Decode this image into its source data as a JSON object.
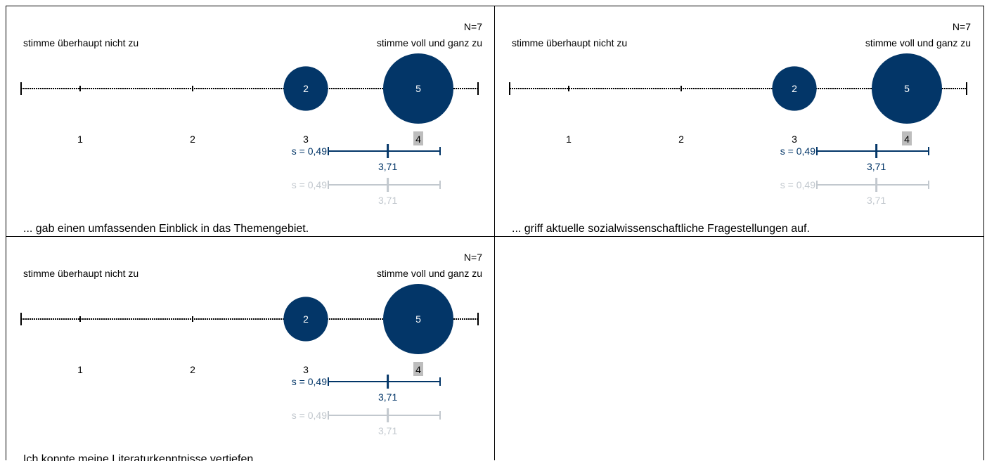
{
  "colors": {
    "accent": "#033668",
    "reference": "#c2c8ce",
    "axis": "#000000",
    "highlight": "#bdbdbd"
  },
  "chart_data": [
    {
      "type": "scatter",
      "question": "...  gab einen umfassenden Einblick in das Themengebiet.",
      "n_label": "N=7",
      "left_anchor": "stimme überhaupt nicht zu",
      "right_anchor": "stimme voll und ganz zu",
      "categories": [
        "1",
        "2",
        "3",
        "4"
      ],
      "counts": [
        0,
        0,
        2,
        5
      ],
      "highlight_category": "4",
      "mean": 3.71,
      "mean_label": "3,71",
      "sd_label": "s = 0,49",
      "reference_mean_label": "3,71",
      "reference_sd_label": "s = 0,49"
    },
    {
      "type": "scatter",
      "question": "... griff aktuelle sozialwissenschaftliche Fragestellungen auf.",
      "n_label": "N=7",
      "left_anchor": "stimme überhaupt nicht zu",
      "right_anchor": "stimme voll und ganz zu",
      "categories": [
        "1",
        "2",
        "3",
        "4"
      ],
      "counts": [
        0,
        0,
        2,
        5
      ],
      "highlight_category": "4",
      "mean": 3.71,
      "mean_label": "3,71",
      "sd_label": "s = 0,49",
      "reference_mean_label": "3,71",
      "reference_sd_label": "s = 0,49"
    },
    {
      "type": "scatter",
      "question": "Ich konnte meine Literaturkenntnisse vertiefen.",
      "n_label": "N=7",
      "left_anchor": "stimme überhaupt nicht zu",
      "right_anchor": "stimme voll und ganz zu",
      "categories": [
        "1",
        "2",
        "3",
        "4"
      ],
      "counts": [
        0,
        0,
        2,
        5
      ],
      "highlight_category": "4",
      "mean": 3.71,
      "mean_label": "3,71",
      "sd_label": "s = 0,49",
      "reference_mean_label": "3,71",
      "reference_sd_label": "s = 0,49"
    }
  ]
}
